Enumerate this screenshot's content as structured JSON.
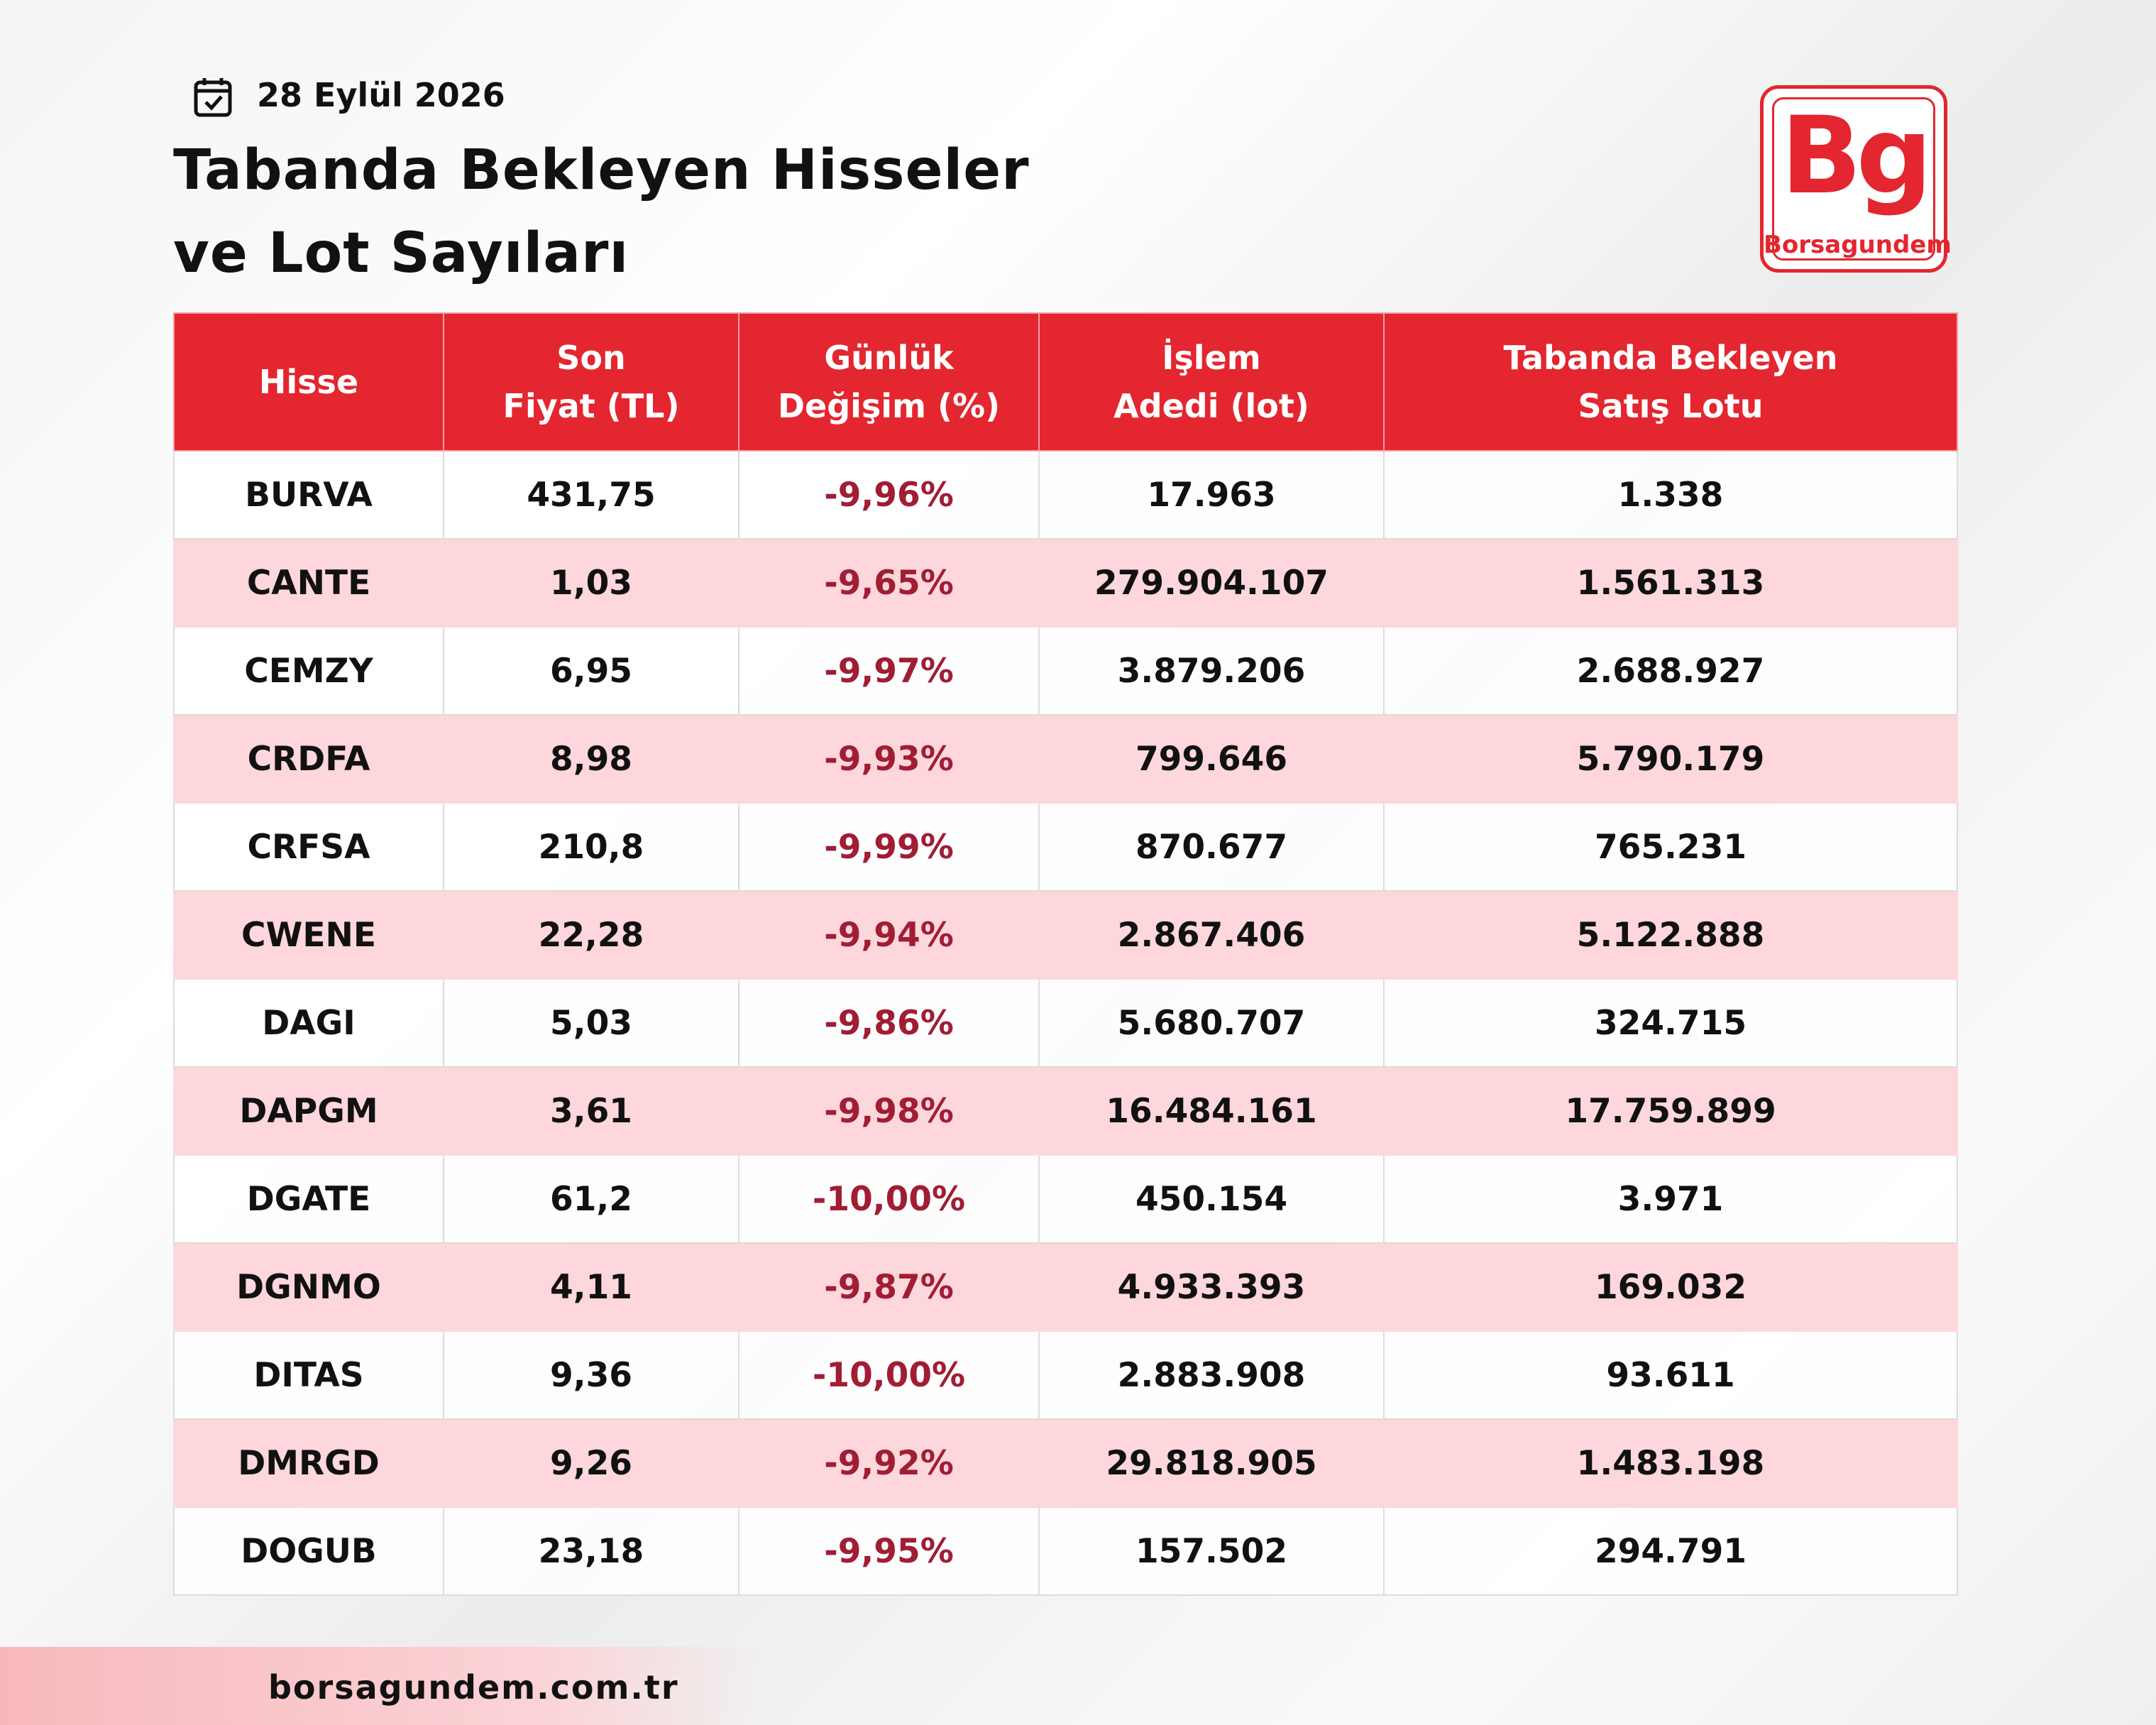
{
  "header": {
    "date": "28 Eylül 2026",
    "title": [
      "Tabanda Bekleyen Hisseler",
      "ve Lot Sayıları"
    ]
  },
  "logo": {
    "mark": "Bg",
    "name": "Borsagundem"
  },
  "table": {
    "columns": [
      [
        "Hisse"
      ],
      [
        "Son",
        "Fiyat (TL)"
      ],
      [
        "Günlük",
        "Değişim (%)"
      ],
      [
        "İşlem",
        "Adedi (lot)"
      ],
      [
        "Tabanda Bekleyen",
        "Satış Lotu"
      ]
    ],
    "rows": [
      [
        "BURVA",
        "431,75",
        "-9,96%",
        "17.963",
        "1.338"
      ],
      [
        "CANTE",
        "1,03",
        "-9,65%",
        "279.904.107",
        "1.561.313"
      ],
      [
        "CEMZY",
        "6,95",
        "-9,97%",
        "3.879.206",
        "2.688.927"
      ],
      [
        "CRDFA",
        "8,98",
        "-9,93%",
        "799.646",
        "5.790.179"
      ],
      [
        "CRFSA",
        "210,8",
        "-9,99%",
        "870.677",
        "765.231"
      ],
      [
        "CWENE",
        "22,28",
        "-9,94%",
        "2.867.406",
        "5.122.888"
      ],
      [
        "DAGI",
        "5,03",
        "-9,86%",
        "5.680.707",
        "324.715"
      ],
      [
        "DAPGM",
        "3,61",
        "-9,98%",
        "16.484.161",
        "17.759.899"
      ],
      [
        "DGATE",
        "61,2",
        "-10,00%",
        "450.154",
        "3.971"
      ],
      [
        "DGNMO",
        "4,11",
        "-9,87%",
        "4.933.393",
        "169.032"
      ],
      [
        "DITAS",
        "9,36",
        "-10,00%",
        "2.883.908",
        "93.611"
      ],
      [
        "DMRGD",
        "9,26",
        "-9,92%",
        "29.818.905",
        "1.483.198"
      ],
      [
        "DOGUB",
        "23,18",
        "-9,95%",
        "157.502",
        "294.791"
      ]
    ]
  },
  "footer": {
    "url": "borsagundem.com.tr"
  }
}
